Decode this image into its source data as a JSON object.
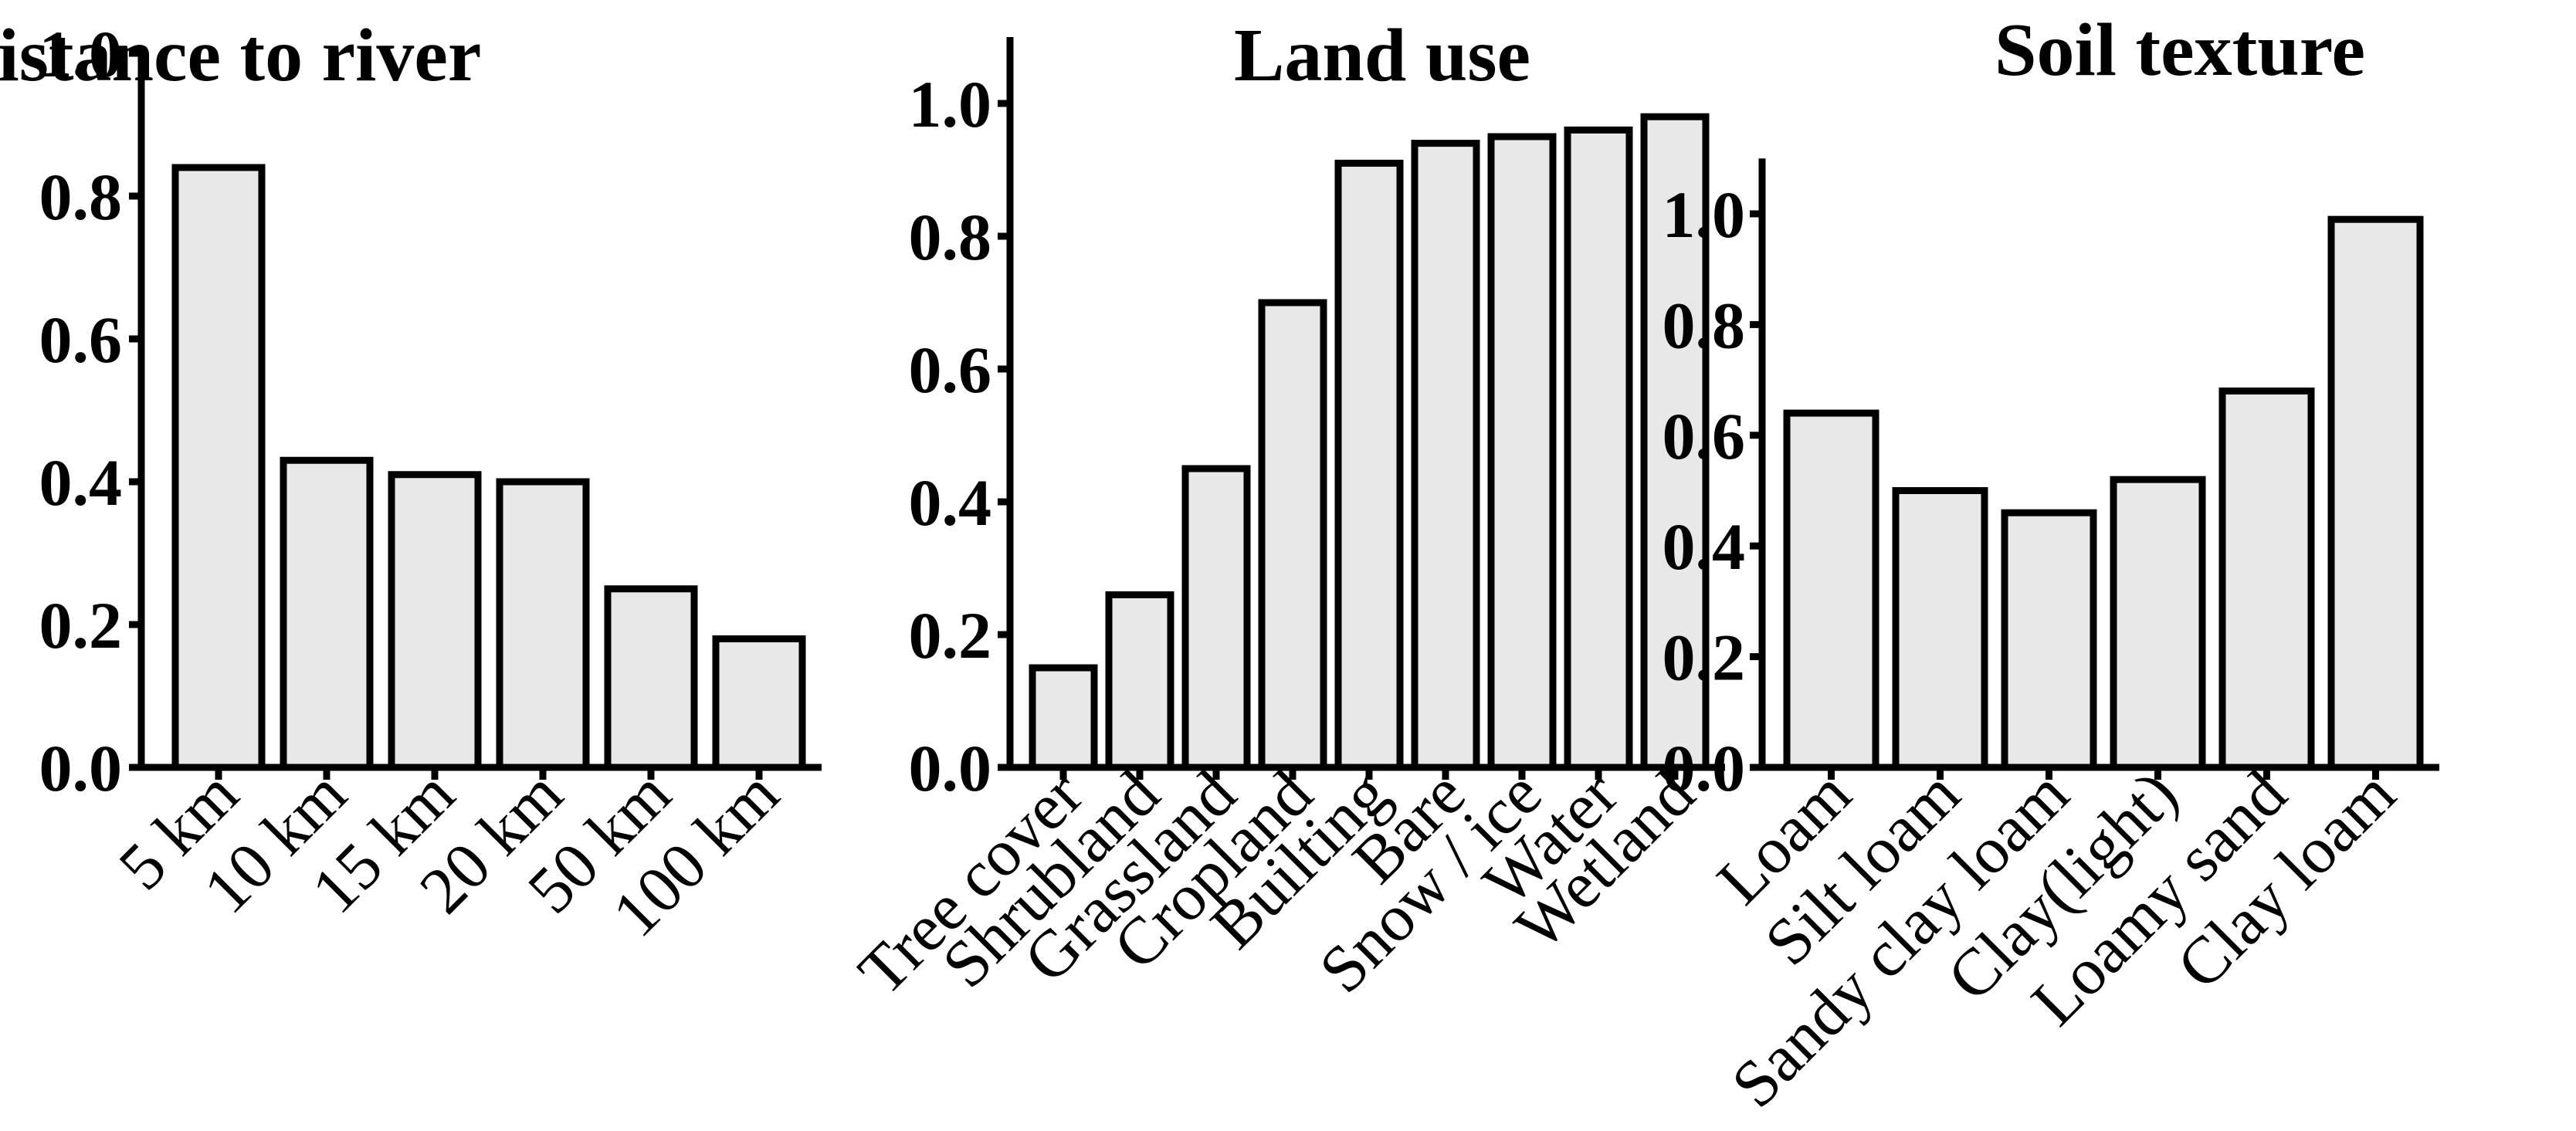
{
  "colors": {
    "bar_fill": "#e8e8e8",
    "bar_stroke": "#000000",
    "background": "#ffffff"
  },
  "chart_data": [
    {
      "type": "bar",
      "title": "Distance to river",
      "categories": [
        "5 km",
        "10 km",
        "15 km",
        "20 km",
        "50 km",
        "100 km"
      ],
      "values": [
        0.84,
        0.43,
        0.41,
        0.4,
        0.25,
        0.18
      ],
      "ylim": [
        0,
        1.0
      ],
      "yticks": [
        "0.0",
        "0.2",
        "0.4",
        "0.6",
        "0.8",
        "1.0"
      ],
      "xlabel": "",
      "ylabel": "",
      "grid": false
    },
    {
      "type": "bar",
      "title": "Land use",
      "categories": [
        "Tree cover",
        "Shrubland",
        "Grassland",
        "Cropland",
        "Builting",
        "Bare",
        "Snow / ice",
        "Water",
        "Wetland"
      ],
      "values": [
        0.15,
        0.26,
        0.45,
        0.7,
        0.91,
        0.94,
        0.95,
        0.96,
        0.98
      ],
      "ylim": [
        0,
        1.1
      ],
      "yticks": [
        "0.0",
        "0.2",
        "0.4",
        "0.6",
        "0.8",
        "1.0"
      ],
      "xlabel": "",
      "ylabel": "",
      "grid": false
    },
    {
      "type": "bar",
      "title": "Soil texture",
      "categories": [
        "Loam",
        "Silt loam",
        "Sandy clay loam",
        "Clay(light)",
        "Loamy sand",
        "Clay loam"
      ],
      "values": [
        0.64,
        0.5,
        0.46,
        0.52,
        0.68,
        0.99
      ],
      "ylim": [
        0,
        1.1
      ],
      "yticks": [
        "0.0",
        "0.2",
        "0.4",
        "0.6",
        "0.8",
        "1.0"
      ],
      "xlabel": "",
      "ylabel": "",
      "grid": false
    }
  ]
}
